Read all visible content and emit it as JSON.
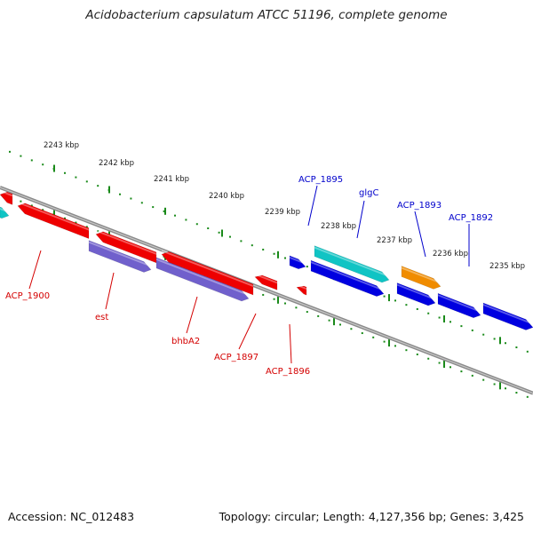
{
  "title": "Acidobacterium capsulatum ATCC 51196, complete genome",
  "footer": {
    "accession": "Accession: NC_012483",
    "summary": "Topology: circular; Length: 4,127,356 bp; Genes: 3,425"
  },
  "scale": {
    "unit": "kbp",
    "ticks": [
      "2243 kbp",
      "2242 kbp",
      "2241 kbp",
      "2240 kbp",
      "2239 kbp",
      "2238 kbp",
      "2237 kbp",
      "2236 kbp",
      "2235 kbp"
    ]
  },
  "colors": {
    "backbone": "#7a7a7a",
    "tick_green": "#1a8a1a",
    "label_red": "#d40000",
    "label_blue": "#0000cc",
    "gene_red": "#ee0000",
    "gene_purple": "#7060cc",
    "gene_cyan": "#10c4c4",
    "gene_blue": "#0000e0",
    "gene_orange": "#f08c00"
  },
  "labels": {
    "top": [
      "ACP_1895",
      "glgC",
      "ACP_1893",
      "ACP_1892"
    ],
    "bottom": [
      "ACP_1900",
      "est",
      "bhbA2",
      "ACP_1897",
      "ACP_1896"
    ]
  }
}
